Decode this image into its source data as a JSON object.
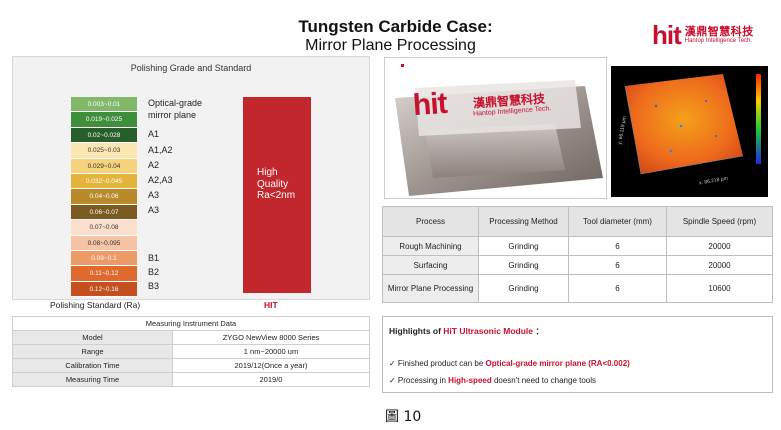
{
  "header": {
    "title_line1": "Tungsten Carbide Case:",
    "title_line2": "Mirror Plane Processing"
  },
  "logo": {
    "brand": "hit",
    "name_cn": "漢鼎智慧科技",
    "name_en": "Hantop Intelligence Tech."
  },
  "polish": {
    "title": "Polishing Grade and Standard",
    "grades": [
      {
        "range": "0.003~0.01",
        "color": "#82b86a"
      },
      {
        "range": "0.019~0.025",
        "color": "#3f8e3a"
      },
      {
        "range": "0.02~0.028",
        "color": "#275e2c"
      },
      {
        "range": "0.025~0.03",
        "color": "#fbe6b3"
      },
      {
        "range": "0.029~0.04",
        "color": "#f5d37a"
      },
      {
        "range": "0.032~0.045",
        "color": "#e3b33a"
      },
      {
        "range": "0.04~0.06",
        "color": "#b98a2a"
      },
      {
        "range": "0.06~0.07",
        "color": "#7a5a1e"
      },
      {
        "range": "0.07~0.08",
        "color": "#fde0cc"
      },
      {
        "range": "0.08~0.095",
        "color": "#f5c4a6"
      },
      {
        "range": "0.09~0.1",
        "color": "#ee9a66"
      },
      {
        "range": "0.11~0.12",
        "color": "#e0692e"
      },
      {
        "range": "0.12~0.16",
        "color": "#c4501f"
      }
    ],
    "labels": {
      "optical": "Optical-grade",
      "mirror": "mirror plane",
      "a1": "A1",
      "a1a2": "A1,A2",
      "a2": "A2",
      "a2a3": "A2,A3",
      "a3a": "A3",
      "a3b": "A3",
      "b1": "B1",
      "b2": "B2",
      "b3": "B3"
    },
    "hq_text": [
      "High",
      "Quality",
      "Ra<2nm"
    ],
    "standard_label": "Polishing Standard (Ra)",
    "standard_hit": "HIT",
    "hq_color": "#c1272d"
  },
  "measure": {
    "title": "Measuring Instrument Data",
    "rows": [
      {
        "label": "Model",
        "value": "ZYGO NewView 8000 Series"
      },
      {
        "label": "Range",
        "value": "1 nm~20000 um"
      },
      {
        "label": "Calibration Time",
        "value": "2019/12(Once a year)"
      },
      {
        "label": "Measuring Time",
        "value": "2019/0"
      }
    ]
  },
  "process": {
    "headers": [
      "Process",
      "Processing Method",
      "Tool diameter (mm)",
      "Spindle Speed (rpm)"
    ],
    "rows": [
      [
        "Rough Machining",
        "Grinding",
        "6",
        "20000"
      ],
      [
        "Surfacing",
        "Grinding",
        "6",
        "20000"
      ],
      [
        "Mirror Plane Processing",
        "Grinding",
        "6",
        "10600"
      ]
    ]
  },
  "highlights": {
    "title_prefix": "Highlights of ",
    "title_red": "HiT Ultrasonic Module",
    "title_suffix": " ：",
    "line1_prefix": "✓ Finished product can be ",
    "line1_red": "Optical-grade mirror plane (RA<0.002)",
    "line2_prefix": "✓ Processing in ",
    "line2_red": "High-speed",
    "line2_suffix": " doesn't need to change tools"
  },
  "photo": {
    "brand": "hit",
    "cn": "漢鼎智慧科技",
    "en": "Hantop Intelligence Tech.",
    "axis_y": "y: 66.119 µm",
    "axis_x": "x: 86.218 µm"
  },
  "figure_caption": "圖 10"
}
